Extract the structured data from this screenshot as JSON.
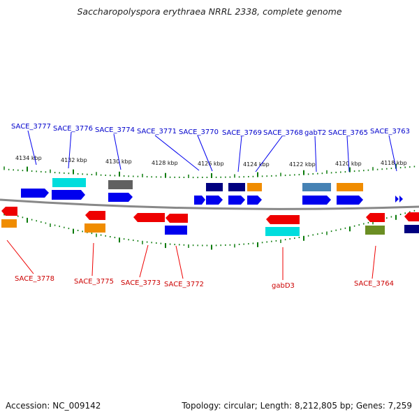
{
  "title": "Saccharopolyspora erythraea NRRL 2338, complete genome",
  "footer": {
    "accession": "Accession: NC_009142",
    "summary": "Topology: circular; Length: 8,212,805 bp; Genes: 7,259"
  },
  "scale_labels": [
    "4134 kbp",
    "4132 kbp",
    "4130 kbp",
    "4128 kbp",
    "4126 kbp",
    "4124 kbp",
    "4122 kbp",
    "4120 kbp",
    "4118 kbp"
  ],
  "top_labels": [
    "SACE_3777",
    "SACE_3776",
    "SACE_3774",
    "SACE_3771",
    "SACE_3770",
    "SACE_3769",
    "SACE_3768",
    "gabT2",
    "SACE_3765",
    "SACE_3763"
  ],
  "bottom_labels": [
    "SACE_3778",
    "SACE_3775",
    "SACE_3773",
    "SACE_3772",
    "gabD3",
    "SACE_3764"
  ],
  "colors": {
    "forward": "#0000ee",
    "reverse": "#ee0000",
    "orange": "#f08c00",
    "cyan": "#00dddd",
    "navy": "#000080",
    "grey": "#606060",
    "steel": "#4682b4",
    "olive": "#6b8e23",
    "tick": "#0a7a0a",
    "backbone": "#888888",
    "label_forward": "#0000cc",
    "label_reverse": "#cc0000"
  }
}
